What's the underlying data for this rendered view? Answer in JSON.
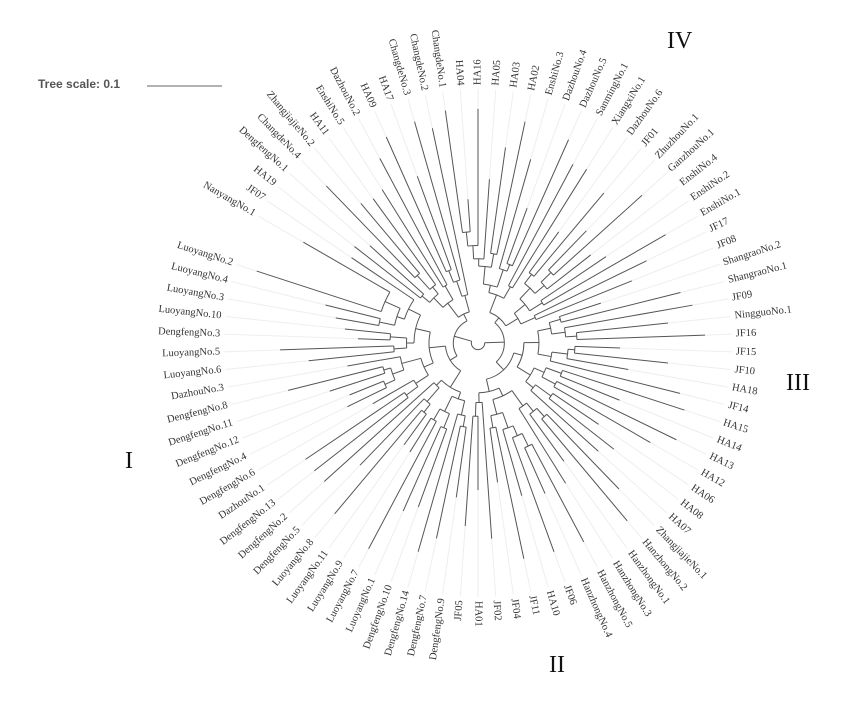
{
  "tree_scale": {
    "label": "Tree scale: 0.1"
  },
  "leaves": [
    "ChangdeNo.1",
    "HA04",
    "HA16",
    "HA05",
    "HA03",
    "HA02",
    "EnshiNo.3",
    "DazhouNo.4",
    "DazhouNo.5",
    "SanmingNo.1",
    "XiangxiNo.1",
    "DazhouNo.6",
    "JF01",
    "ZhuzhouNo.1",
    "GanzhouNo.1",
    "EnshiNo.4",
    "EnshiNo.2",
    "EnshiNo.1",
    "JF17",
    "JF08",
    "ShangraoNo.2",
    "ShangraoNo.1",
    "JF09",
    "NingguoNo.1",
    "JF16",
    "JF15",
    "JF10",
    "HA18",
    "JF14",
    "HA15",
    "HA14",
    "HA13",
    "HA12",
    "HA06",
    "HA08",
    "HA07",
    "ZhangjiajieNo.1",
    "HanzhongNo.2",
    "HanzhongNo.1",
    "HanzhongNo.3",
    "HanzhongNo.5",
    "HanzhongNo.4",
    "JF06",
    "HA10",
    "JF11",
    "JF04",
    "JF02",
    "HA01",
    "JF05",
    "DengfengNo.9",
    "DengfengNo.7",
    "DengfengNo.14",
    "DengfengNo.10",
    "LuoyangNo.1",
    "LuoyangNo.7",
    "LuoyangNo.9",
    "LuoyangNo.11",
    "LuoyangNo.8",
    "DengfengNo.5",
    "DengfengNo.2",
    "DengfengNo.13",
    "DazhouNo.1",
    "DengfengNo.6",
    "DengfengNo.4",
    "DengfengNo.12",
    "DengfengNo.11",
    "DengfengNo.8",
    "DazhouNo.3",
    "LuoyangNo.6",
    "LuoyangNo.5",
    "DengfengNo.3",
    "LuoyangNo.10",
    "LuoyangNo.3",
    "LuoyangNo.4",
    "LuoyangNo.2",
    "NanyangNo.1",
    "JF07",
    "HA19",
    "DengfengNo.1",
    "ChangdeNo.4",
    "ZhangjiajieNo.2",
    "HA11",
    "EnshiNo.5",
    "DazhouNo.2",
    "HA09",
    "HA17",
    "ChangdeNo.3",
    "ChangdeNo.2"
  ],
  "clades": [
    "I",
    "II",
    "III",
    "IV"
  ]
}
